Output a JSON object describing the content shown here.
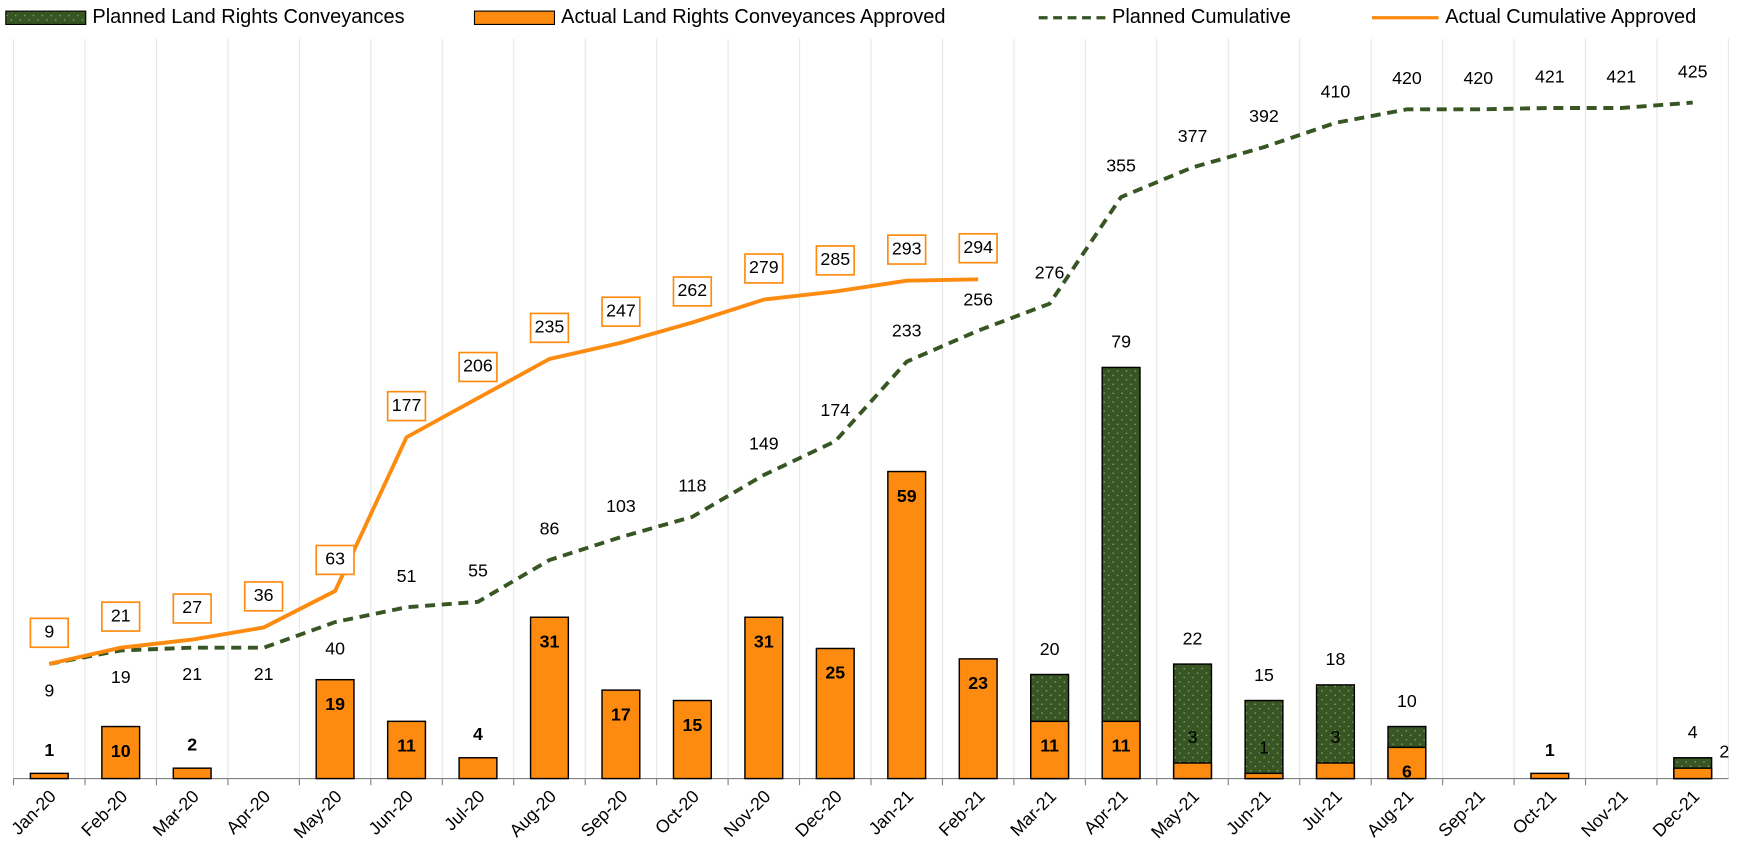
{
  "chart_data": {
    "type": "combo",
    "categories": [
      "Jan-20",
      "Feb-20",
      "Mar-20",
      "Apr-20",
      "May-20",
      "Jun-20",
      "Jul-20",
      "Aug-20",
      "Sep-20",
      "Oct-20",
      "Nov-20",
      "Dec-20",
      "Jan-21",
      "Feb-21",
      "Mar-21",
      "Apr-21",
      "May-21",
      "Jun-21",
      "Jul-21",
      "Aug-21",
      "Sep-21",
      "Oct-21",
      "Nov-21",
      "Dec-21"
    ],
    "series": [
      {
        "name": "Planned Land Rights Conveyances",
        "type": "bar",
        "color": "#375623",
        "values": [
          null,
          null,
          null,
          null,
          null,
          null,
          null,
          null,
          null,
          null,
          null,
          null,
          null,
          null,
          20,
          79,
          22,
          15,
          18,
          10,
          null,
          null,
          null,
          4
        ]
      },
      {
        "name": "Actual Land Rights Conveyances Approved",
        "type": "bar",
        "color": "#fd8b10",
        "values": [
          1,
          10,
          2,
          null,
          19,
          11,
          4,
          31,
          17,
          15,
          31,
          25,
          59,
          23,
          11,
          11,
          3,
          1,
          3,
          6,
          null,
          1,
          null,
          2
        ]
      },
      {
        "name": "Planned Cumulative",
        "type": "line",
        "dashed": true,
        "axis": "y2",
        "color": "#375623",
        "values": [
          9,
          19,
          21,
          21,
          40,
          51,
          55,
          86,
          103,
          118,
          149,
          174,
          233,
          256,
          276,
          355,
          377,
          392,
          410,
          420,
          420,
          421,
          421,
          425
        ]
      },
      {
        "name": "Actual Cumulative Approved",
        "type": "line",
        "dashed": false,
        "axis": "y2",
        "color": "#fd8b10",
        "values": [
          9,
          21,
          27,
          36,
          63,
          177,
          206,
          235,
          247,
          262,
          279,
          285,
          293,
          294,
          null,
          null,
          null,
          null,
          null,
          null,
          null,
          null,
          null,
          null
        ]
      }
    ],
    "ylim": [
      0,
      140
    ],
    "y2lim": [
      -76,
      464
    ],
    "grid": true,
    "legend": "top"
  }
}
